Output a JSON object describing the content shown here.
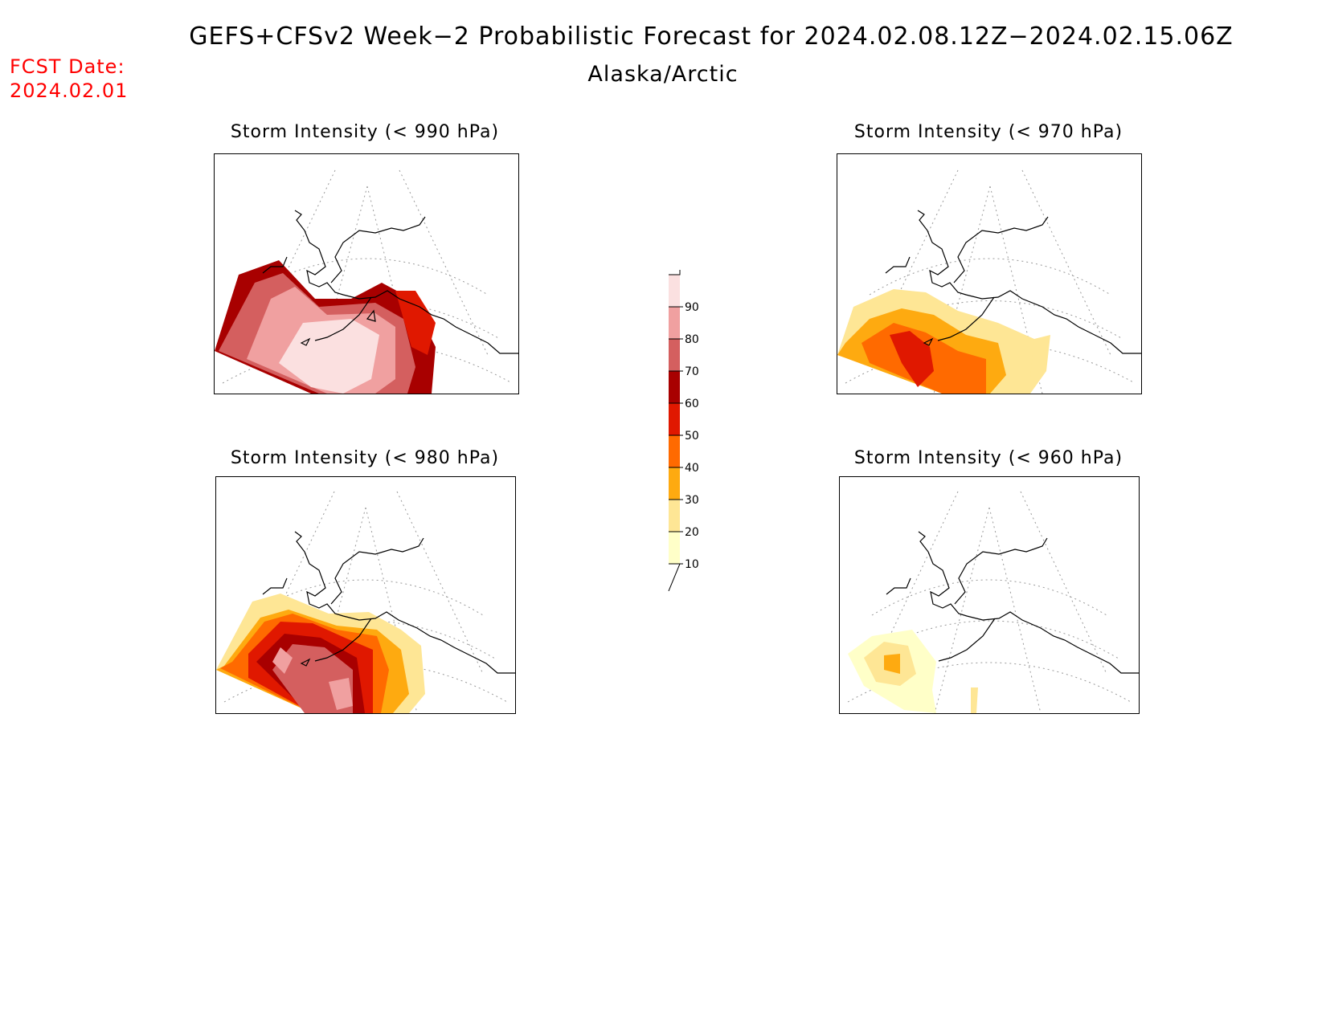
{
  "title": "GEFS+CFSv2 Week−2 Probabilistic Forecast for 2024.02.08.12Z−2024.02.15.06Z",
  "subtitle": "Alaska/Arctic",
  "fcst_date": {
    "label": "FCST Date:",
    "value": "2024.02.01"
  },
  "panels": [
    {
      "title": "Storm Intensity (< 990 hPa)",
      "threshold_hPa": 990
    },
    {
      "title": "Storm Intensity (< 970 hPa)",
      "threshold_hPa": 970
    },
    {
      "title": "Storm Intensity (< 980 hPa)",
      "threshold_hPa": 980
    },
    {
      "title": "Storm Intensity (< 960 hPa)",
      "threshold_hPa": 960
    }
  ],
  "colorbar": {
    "levels": [
      "10",
      "20",
      "30",
      "40",
      "50",
      "60",
      "70",
      "80",
      "90"
    ],
    "colors": [
      "#ffffc8",
      "#fee695",
      "#feaa10",
      "#ff6a00",
      "#e01800",
      "#a80000",
      "#d45f5f",
      "#f0a0a0",
      "#fbe0e0"
    ]
  }
}
